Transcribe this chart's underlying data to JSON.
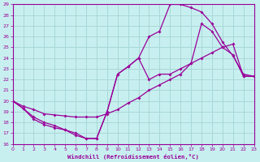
{
  "xlabel": "Windchill (Refroidissement éolien,°C)",
  "ylabel": "",
  "bg_color": "#c8efef",
  "grid_color": "#a8d8d8",
  "line_color": "#990099",
  "xlim": [
    0,
    23
  ],
  "ylim": [
    16,
    29
  ],
  "xticks": [
    0,
    1,
    2,
    3,
    4,
    5,
    6,
    7,
    8,
    9,
    10,
    11,
    12,
    13,
    14,
    15,
    16,
    17,
    18,
    19,
    20,
    21,
    22,
    23
  ],
  "yticks": [
    16,
    17,
    18,
    19,
    20,
    21,
    22,
    23,
    24,
    25,
    26,
    27,
    28,
    29
  ],
  "line1_x": [
    0,
    1,
    2,
    3,
    4,
    5,
    6,
    7,
    8,
    9,
    10,
    11,
    12,
    13,
    14,
    15,
    16,
    17,
    18,
    19,
    20,
    21,
    22,
    23
  ],
  "line1_y": [
    20.0,
    19.3,
    18.5,
    18.0,
    17.7,
    17.3,
    17.0,
    16.5,
    16.5,
    19.0,
    22.5,
    23.2,
    24.0,
    26.0,
    26.5,
    29.0,
    29.0,
    28.7,
    28.3,
    27.2,
    25.5,
    24.2,
    22.5,
    22.3
  ],
  "line2_x": [
    0,
    1,
    2,
    3,
    4,
    5,
    6,
    7,
    8,
    9,
    10,
    11,
    12,
    13,
    14,
    15,
    16,
    17,
    18,
    19,
    20,
    21,
    22,
    23
  ],
  "line2_y": [
    20.0,
    19.5,
    19.2,
    18.8,
    18.7,
    18.6,
    18.5,
    18.5,
    18.5,
    18.8,
    19.2,
    19.8,
    20.3,
    21.0,
    21.5,
    22.0,
    22.5,
    23.5,
    27.2,
    26.5,
    25.0,
    24.3,
    22.3,
    22.3
  ],
  "line3_x": [
    0,
    1,
    2,
    3,
    4,
    5,
    6,
    7,
    8,
    9,
    10,
    11,
    12,
    13,
    14,
    15,
    16,
    17,
    18,
    19,
    20,
    21,
    22,
    23
  ],
  "line3_y": [
    20.0,
    19.3,
    18.3,
    17.8,
    17.5,
    17.3,
    16.8,
    16.5,
    16.5,
    19.0,
    22.5,
    23.2,
    24.0,
    22.0,
    22.5,
    22.5,
    23.0,
    23.5,
    24.0,
    24.5,
    25.0,
    25.3,
    22.3,
    22.3
  ]
}
